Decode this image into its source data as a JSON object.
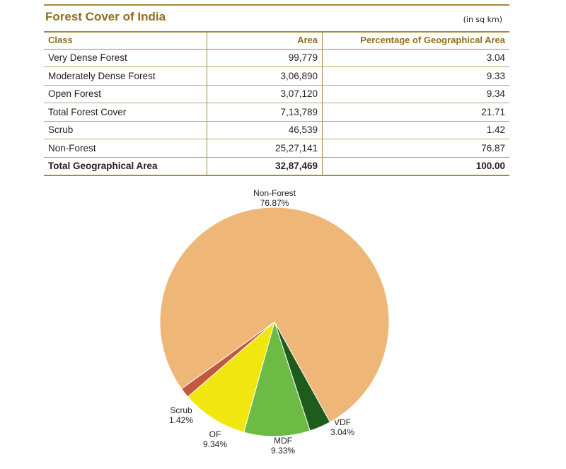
{
  "title": "Forest Cover of India",
  "unit": "(in sq km)",
  "table": {
    "headers": [
      "Class",
      "Area",
      "Percentage of Geographical Area"
    ],
    "rows": [
      {
        "class": "Very Dense Forest",
        "area": "99,779",
        "pct": "3.04"
      },
      {
        "class": "Moderately Dense Forest",
        "area": "3,06,890",
        "pct": "9.33"
      },
      {
        "class": "Open Forest",
        "area": "3,07,120",
        "pct": "9.34"
      },
      {
        "class": "Total Forest Cover",
        "area": "7,13,789",
        "pct": "21.71"
      },
      {
        "class": "Scrub",
        "area": "46,539",
        "pct": "1.42"
      },
      {
        "class": "Non-Forest",
        "area": "25,27,141",
        "pct": "76.87"
      }
    ],
    "total": {
      "class": "Total Geographical Area",
      "area": "32,87,469",
      "pct": "100.00"
    }
  },
  "chart_data": {
    "type": "pie",
    "title": "",
    "slices": [
      {
        "label": "VDF",
        "value": 3.04,
        "display": "3.04%",
        "color": "#1f5b1c"
      },
      {
        "label": "MDF",
        "value": 9.33,
        "display": "9.33%",
        "color": "#6cbb45"
      },
      {
        "label": "OF",
        "value": 9.34,
        "display": "9.34%",
        "color": "#f2e611"
      },
      {
        "label": "Scrub",
        "value": 1.42,
        "display": "1.42%",
        "color": "#c1593c"
      },
      {
        "label": "Non-Forest",
        "value": 76.87,
        "display": "76.87%",
        "color": "#eeb677"
      }
    ]
  }
}
